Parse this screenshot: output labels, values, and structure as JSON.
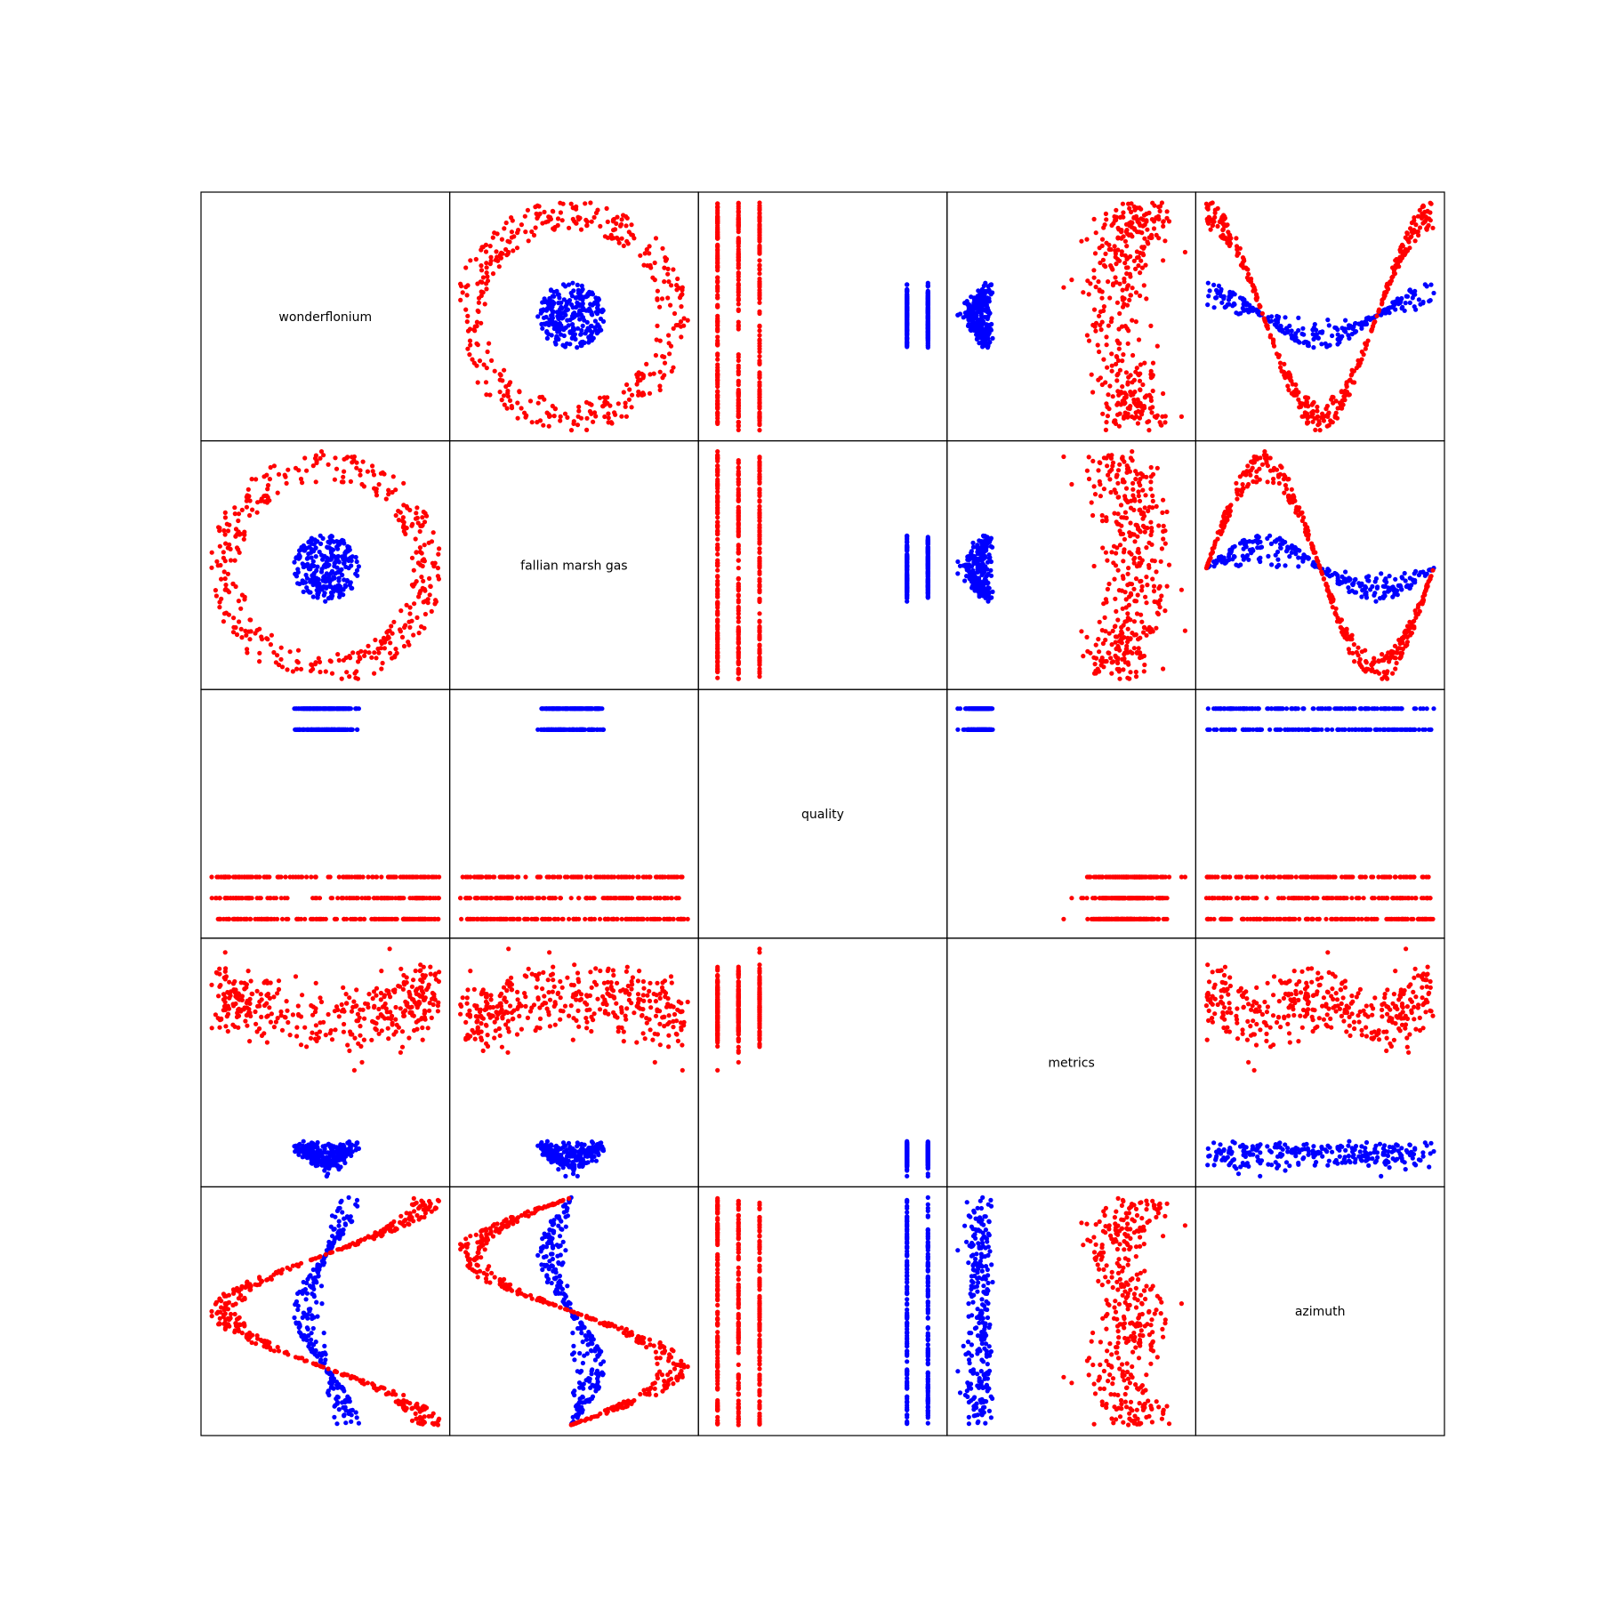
{
  "chart_data": {
    "type": "scatter",
    "layout": "scatter-matrix",
    "variables": [
      "wonderflonium",
      "fallian marsh gas",
      "quality",
      "metrics",
      "azimuth"
    ],
    "classes": [
      {
        "color": "#0000ff"
      },
      {
        "color": "#ff0000"
      }
    ],
    "grid": false,
    "axes_ticks": false,
    "seed": 1234,
    "point_count_per_class": [
      260,
      380
    ],
    "variable_models": {
      "wonderflonium": "0.15·r·cos(θ) where r≈1 (blue) or r≈3.3 (red)",
      "fallian marsh gas": "0.15·r·sin(θ)",
      "quality": "blue ∈ {9, 10}; red ∈ {0, 1, 2}",
      "metrics": "blue: r·0.5 + small noise (low); red: r·0.5 + offset (high)",
      "azimuth": "θ in [0, 2π)"
    },
    "diagonal": "variable name",
    "off_diagonal": "scatter of column variable (x) vs row variable (y)"
  }
}
